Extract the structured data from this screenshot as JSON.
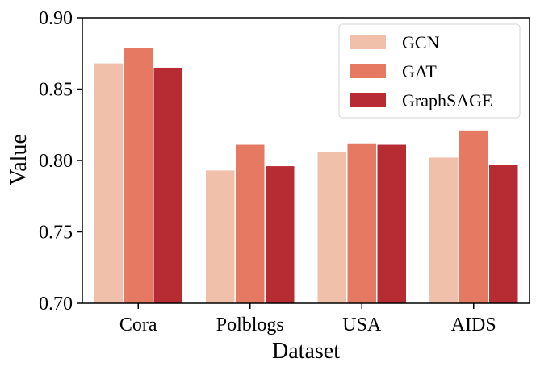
{
  "chart_data": {
    "type": "bar",
    "title": "",
    "xlabel": "Dataset",
    "ylabel": "Value",
    "categories": [
      "Cora",
      "Polblogs",
      "USA",
      "AIDS"
    ],
    "series": [
      {
        "name": "GCN",
        "color": "#f0c0aa",
        "values": [
          0.868,
          0.793,
          0.806,
          0.802
        ]
      },
      {
        "name": "GAT",
        "color": "#e57962",
        "values": [
          0.879,
          0.811,
          0.812,
          0.821
        ]
      },
      {
        "name": "GraphSAGE",
        "color": "#b72b32",
        "values": [
          0.865,
          0.796,
          0.811,
          0.797
        ]
      }
    ],
    "ylim": [
      0.7,
      0.9
    ],
    "yticks": [
      0.7,
      0.75,
      0.8,
      0.85,
      0.9
    ],
    "ytick_labels": [
      "0.70",
      "0.75",
      "0.80",
      "0.85",
      "0.90"
    ],
    "legend_position": "top-right",
    "grid": false
  }
}
